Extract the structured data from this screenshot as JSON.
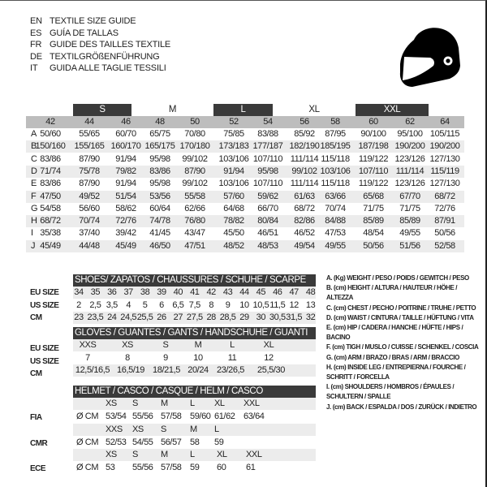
{
  "titles": [
    {
      "code": "EN",
      "text": "TEXTILE SIZE GUIDE"
    },
    {
      "code": "ES",
      "text": "GUÍA DE TALLAS"
    },
    {
      "code": "FR",
      "text": "GUIDE DES TAILLES TEXTILE"
    },
    {
      "code": "DE",
      "text": "TEXTILGRÖßENFÜHRUNG"
    },
    {
      "code": "IT",
      "text": "GUIDA ALLE TAGLIE TESSILI"
    }
  ],
  "icon": "helmet-icon",
  "colors": {
    "dark": "#3a3a3a",
    "header_gray": "#bdbdbd",
    "row_gray": "#ececec"
  },
  "size_groups": [
    "S",
    "M",
    "L",
    "XL",
    "XXL"
  ],
  "size_numbers": [
    "42",
    "44",
    "46",
    "48",
    "50",
    "52",
    "54",
    "56",
    "58",
    "60",
    "62",
    "64"
  ],
  "measure_rows": [
    {
      "label": "A",
      "values": [
        "50/60",
        "55/65",
        "60/70",
        "65/75",
        "70/80",
        "75/85",
        "83/88",
        "85/92",
        "87/95",
        "90/100",
        "95/100",
        "105/115"
      ]
    },
    {
      "label": "B",
      "values": [
        "150/160",
        "155/165",
        "160/170",
        "165/175",
        "170/180",
        "173/183",
        "177/187",
        "182/190",
        "185/195",
        "187/198",
        "190/200",
        "190/200"
      ]
    },
    {
      "label": "C",
      "values": [
        "83/86",
        "87/90",
        "91/94",
        "95/98",
        "99/102",
        "103/106",
        "107/110",
        "111/114",
        "115/118",
        "119/122",
        "123/126",
        "127/130"
      ]
    },
    {
      "label": "D",
      "values": [
        "71/74",
        "75/78",
        "79/82",
        "83/86",
        "87/90",
        "91/94",
        "95/98",
        "99/102",
        "103/106",
        "107/110",
        "111/114",
        "115/119"
      ]
    },
    {
      "label": "E",
      "values": [
        "83/86",
        "87/90",
        "91/94",
        "95/98",
        "99/102",
        "103/106",
        "107/110",
        "111/114",
        "115/118",
        "119/122",
        "123/126",
        "127/130"
      ]
    },
    {
      "label": "F",
      "values": [
        "47/50",
        "49/52",
        "51/54",
        "53/56",
        "55/58",
        "57/60",
        "59/62",
        "61/63",
        "63/66",
        "65/68",
        "67/70",
        "68/72"
      ]
    },
    {
      "label": "G",
      "values": [
        "54/58",
        "56/60",
        "58/62",
        "60/64",
        "62/66",
        "64/68",
        "66/70",
        "68/72",
        "70/74",
        "71/75",
        "71/75",
        "72/76"
      ]
    },
    {
      "label": "H",
      "values": [
        "68/72",
        "70/74",
        "72/76",
        "74/78",
        "76/80",
        "78/82",
        "80/84",
        "82/86",
        "84/88",
        "85/89",
        "85/89",
        "87/91"
      ]
    },
    {
      "label": "I",
      "values": [
        "35/38",
        "37/40",
        "39/42",
        "41/45",
        "43/47",
        "45/50",
        "46/51",
        "46/52",
        "47/53",
        "48/54",
        "49/55",
        "50/56"
      ]
    },
    {
      "label": "J",
      "values": [
        "45/49",
        "44/48",
        "45/49",
        "46/50",
        "47/51",
        "48/52",
        "48/53",
        "49/54",
        "49/55",
        "50/56",
        "51/56",
        "52/58"
      ]
    }
  ],
  "shoes": {
    "title": "SHOES/ ZAPATOS / CHAUSSURES / SCHUHE / SCARPE",
    "rows": [
      {
        "label": "EU SIZE",
        "values": [
          "34",
          "35",
          "36",
          "37",
          "38",
          "39",
          "40",
          "41",
          "42",
          "43",
          "44",
          "45",
          "46",
          "47",
          "48"
        ]
      },
      {
        "label": "US SIZE",
        "values": [
          "2",
          "2,5",
          "3,5",
          "4",
          "5",
          "6",
          "6,5",
          "7,5",
          "8",
          "9",
          "10",
          "10,5",
          "11,5",
          "12",
          "13"
        ]
      },
      {
        "label": "CM",
        "values": [
          "23",
          "23,5",
          "24",
          "24,5",
          "25,5",
          "26",
          "27",
          "27,5",
          "28",
          "28,5",
          "29",
          "30",
          "30,5",
          "31,5",
          "32"
        ]
      }
    ]
  },
  "gloves": {
    "title": "GLOVES / GUANTES / GANTS / HANDSCHUHE / GUANTI",
    "rows": [
      {
        "label": "EU SIZE",
        "values": [
          "XXS",
          "XS",
          "S",
          "M",
          "L",
          "XL"
        ]
      },
      {
        "label": "US SIZE",
        "values": [
          "7",
          "8",
          "9",
          "10",
          "11",
          "12"
        ]
      },
      {
        "label": "CM",
        "values": [
          "12,5/16,5",
          "16,5/19",
          "18/21,5",
          "20/24",
          "23/26,5",
          "25,5/30"
        ]
      }
    ]
  },
  "helmet": {
    "title": "HELMET / CASCO / CASQUE / HELM / CASCO",
    "unit": "Ø CM",
    "standards": [
      {
        "label": "FIA",
        "sizes": [
          "XS",
          "S",
          "M",
          "L",
          "XL",
          "XXL"
        ],
        "values": [
          "53/54",
          "55/56",
          "57/58",
          "59/60",
          "61/62",
          "63/64"
        ]
      },
      {
        "label": "CMR",
        "sizes": [
          "XXS",
          "XS",
          "S",
          "M",
          "L"
        ],
        "values": [
          "52/53",
          "54/55",
          "56/57",
          "58",
          "59"
        ]
      },
      {
        "label": "ECE",
        "sizes": [
          "XS",
          "S",
          "M",
          "L",
          "XL",
          "XXL"
        ],
        "values": [
          "53",
          "55/56",
          "57/58",
          "59",
          "60",
          "61"
        ]
      }
    ]
  },
  "legend": [
    "A. (Kg) WEIGHT / PESO / POIDS / GEWITCH / PESO",
    "B. (cm) HEIGHT / ALTURA / HAUTEUR / HÖHE / ALTEZZA",
    "C. (cm) CHEST / PECHO / POITRINE / TRUHE / PETTO",
    "D. (cm) WAIST / CINTURA / TAILLE / HÜFTUNG / VITA",
    "E. (cm) HIP / CADERA / HANCHE / HÜFTE / HIPS /  BACINO",
    "F.  (cm) TIGH / MUSLO / CUISSE / SCHENKEL / COSCIA",
    "G. (cm) ARM  / BRAZO / BRAS / ARM / BRACCIO",
    "H. (cm) INSIDE LEG / ENTREPIERNA / FOURCHE / SCHRITT / FORCELLA",
    "I.  (cm) SHOULDERS / HOMBROS / ÉPAULES / SCHULTERN / SPALLE",
    "J. (cm) BACK / ESPALDA / DOS / ZURÜCK / INDIETRO"
  ]
}
